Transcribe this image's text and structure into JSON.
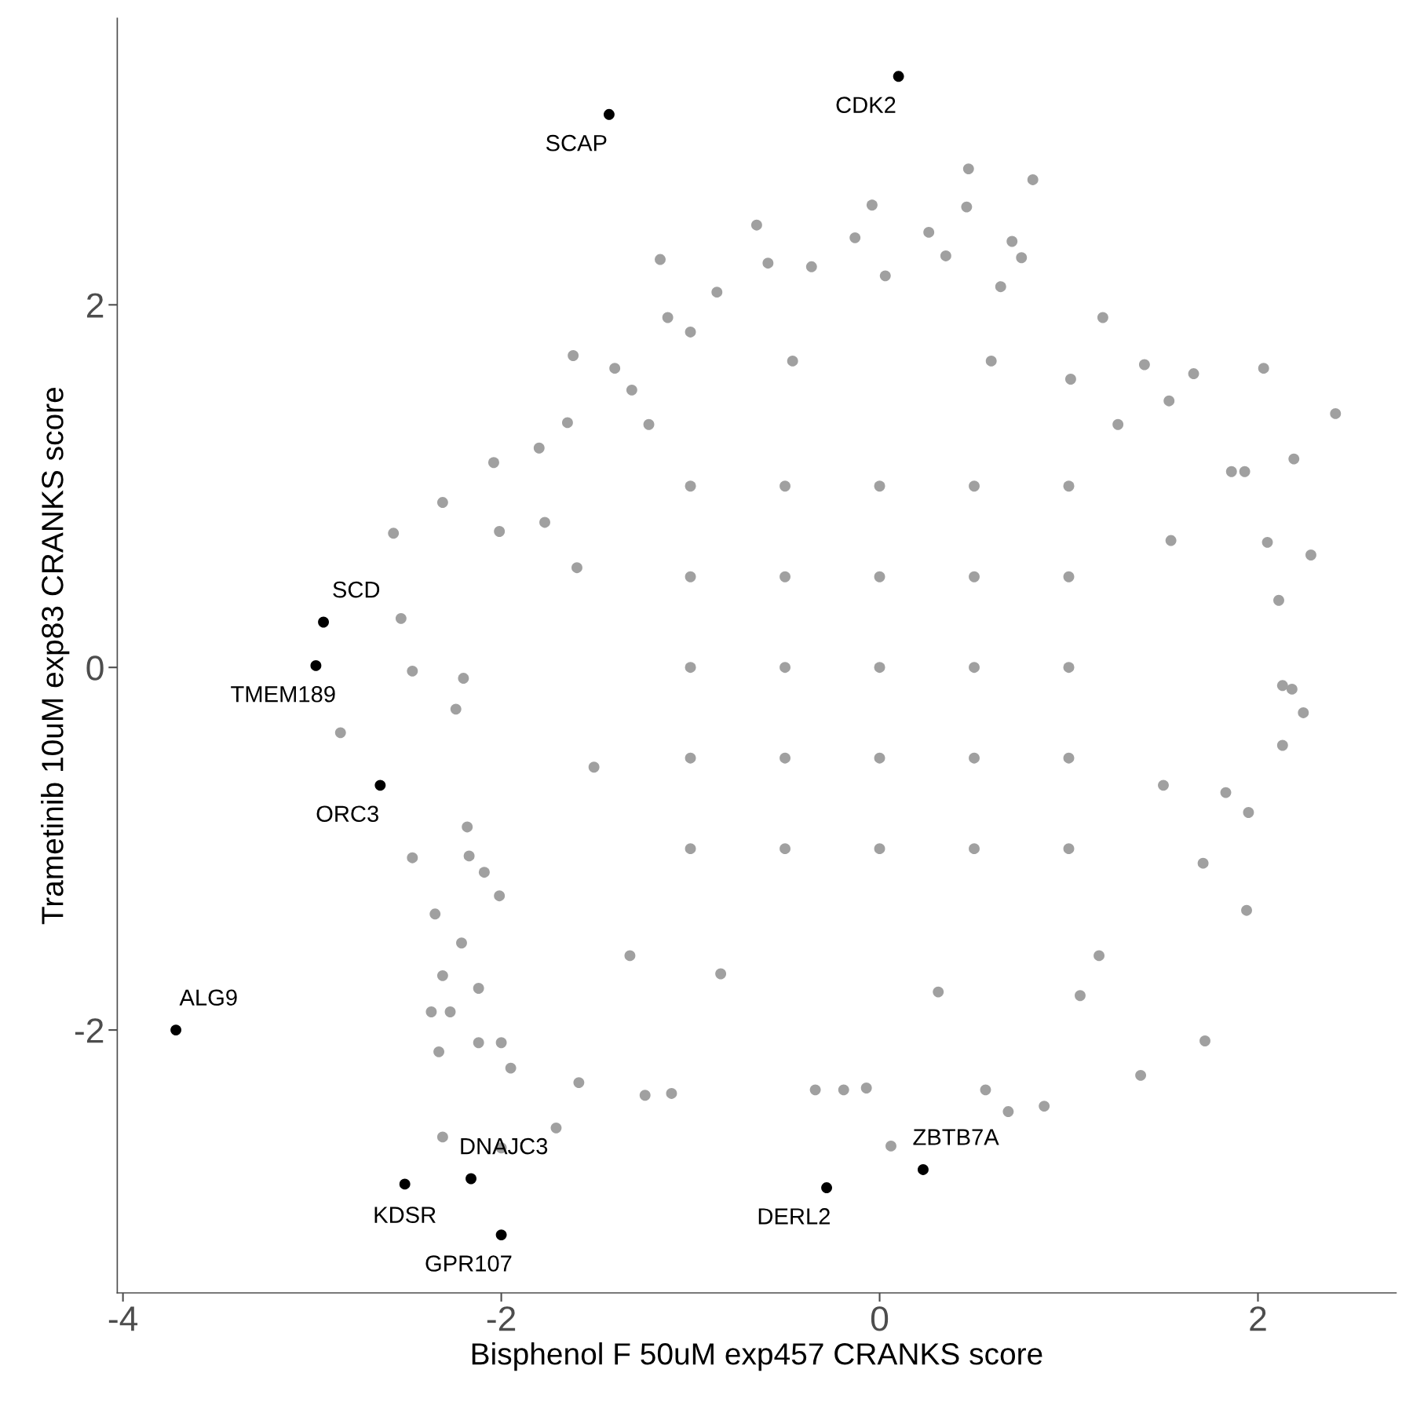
{
  "chart_data": {
    "type": "scatter",
    "xlabel": "Bisphenol F 50uM exp457 CRANKS score",
    "ylabel": "Trametinib 10uM exp83 CRANKS score",
    "xlim": [
      -4.03,
      2.73
    ],
    "ylim": [
      -3.45,
      3.58
    ],
    "xticks": [
      -4,
      -2,
      0,
      2
    ],
    "yticks": [
      -2,
      0,
      2
    ],
    "grid": false,
    "legend": false,
    "marker": "circle",
    "series": [
      {
        "color": "#a0a0a0",
        "x": [
          0.47,
          0.81,
          -0.04,
          0.46,
          -0.65,
          -0.13,
          0.26,
          0.7,
          -1.16,
          -0.59,
          0.35,
          0.75,
          -0.36,
          0.03,
          0.64,
          -0.86,
          -1.12,
          1.18,
          -1.0,
          -1.62,
          -1.4,
          1.4,
          1.66,
          2.03,
          2.41,
          -1.65,
          2.19,
          -1.8,
          -2.04,
          1.86,
          1.93,
          -2.31,
          -2.57,
          -1.77,
          -2.01,
          2.28,
          2.05,
          2.11,
          -2.53,
          -2.47,
          2.13,
          2.18,
          2.24,
          2.13,
          -2.85,
          -2.24,
          -2.2,
          1.83,
          1.95,
          -2.47,
          -2.18,
          -2.17,
          -2.09,
          -2.35,
          -2.21,
          -2.01,
          -2.31,
          -2.12,
          1.94,
          1.71,
          1.72,
          -2.37,
          -2.27,
          -2.33,
          -2.12,
          -2.0,
          -1.95,
          -1.59,
          -1.24,
          -1.1,
          -0.34,
          -0.19,
          -0.07,
          0.56,
          0.68,
          0.87,
          1.38,
          -1.71,
          -2.31,
          -2.0,
          0.06,
          1.06,
          -1.31,
          1.53,
          1.01,
          -1.6,
          -1.51,
          1.54,
          1.5,
          -0.84,
          0.31,
          -0.46,
          0.59,
          -1.22,
          1.26,
          -1.32,
          1.16,
          -1.0,
          -0.5,
          0.0,
          0.5,
          1.0,
          -1.0,
          -0.5,
          0.0,
          0.5,
          1.0,
          -1.0,
          -0.5,
          0.0,
          0.5,
          1.0,
          -1.0,
          -0.5,
          0.0,
          0.5,
          1.0,
          -1.0,
          -0.5,
          0.0,
          0.5,
          1.0
        ],
        "values": [
          2.75,
          2.69,
          2.55,
          2.54,
          2.44,
          2.37,
          2.4,
          2.35,
          2.25,
          2.23,
          2.27,
          2.26,
          2.21,
          2.16,
          2.1,
          2.07,
          1.93,
          1.93,
          1.85,
          1.72,
          1.65,
          1.67,
          1.62,
          1.65,
          1.4,
          1.35,
          1.15,
          1.21,
          1.13,
          1.08,
          1.08,
          0.91,
          0.74,
          0.8,
          0.75,
          0.62,
          0.69,
          0.37,
          0.27,
          -0.02,
          -0.1,
          -0.12,
          -0.25,
          -0.43,
          -0.36,
          -0.23,
          -0.06,
          -0.69,
          -0.8,
          -1.05,
          -0.88,
          -1.04,
          -1.13,
          -1.36,
          -1.52,
          -1.26,
          -1.7,
          -1.77,
          -1.34,
          -1.08,
          -2.06,
          -1.9,
          -1.9,
          -2.12,
          -2.07,
          -2.07,
          -2.21,
          -2.29,
          -2.36,
          -2.35,
          -2.33,
          -2.33,
          -2.32,
          -2.33,
          -2.45,
          -2.42,
          -2.25,
          -2.54,
          -2.59,
          -2.65,
          -2.64,
          -1.81,
          1.53,
          1.47,
          1.59,
          0.55,
          -0.55,
          0.7,
          -0.65,
          -1.69,
          -1.79,
          1.69,
          1.69,
          1.34,
          1.34,
          -1.59,
          -1.59,
          -1.0,
          -1.0,
          -1.0,
          -1.0,
          -1.0,
          -0.5,
          -0.5,
          -0.5,
          -0.5,
          -0.5,
          0.0,
          0.0,
          0.0,
          0.0,
          0.0,
          0.5,
          0.5,
          0.5,
          0.5,
          0.5,
          1.0,
          1.0,
          1.0,
          1.0,
          1.0
        ]
      },
      {
        "color": "#000000",
        "x": [
          0.1,
          -1.43,
          -2.94,
          -2.98,
          -2.64,
          -3.72,
          -2.51,
          -2.16,
          -2.0,
          -0.28,
          0.23
        ],
        "values": [
          3.26,
          3.05,
          0.25,
          0.01,
          -0.65,
          -2.0,
          -2.85,
          -2.82,
          -3.13,
          -2.87,
          -2.77
        ]
      }
    ],
    "annotations": [
      {
        "text": "CDK2",
        "x": 0.1,
        "y": 3.26
      },
      {
        "text": "SCAP",
        "x": -1.43,
        "y": 3.05
      },
      {
        "text": "SCD",
        "x": -2.94,
        "y": 0.25
      },
      {
        "text": "TMEM189",
        "x": -2.98,
        "y": 0.01
      },
      {
        "text": "ORC3",
        "x": -2.64,
        "y": -0.65
      },
      {
        "text": "ALG9",
        "x": -3.72,
        "y": -2.0
      },
      {
        "text": "KDSR",
        "x": -2.51,
        "y": -2.85
      },
      {
        "text": "DNAJC3",
        "x": -2.16,
        "y": -2.82
      },
      {
        "text": "GPR107",
        "x": -2.0,
        "y": -3.13
      },
      {
        "text": "DERL2",
        "x": -0.28,
        "y": -2.87
      },
      {
        "text": "ZBTB7A",
        "x": 0.23,
        "y": -2.77
      }
    ]
  }
}
